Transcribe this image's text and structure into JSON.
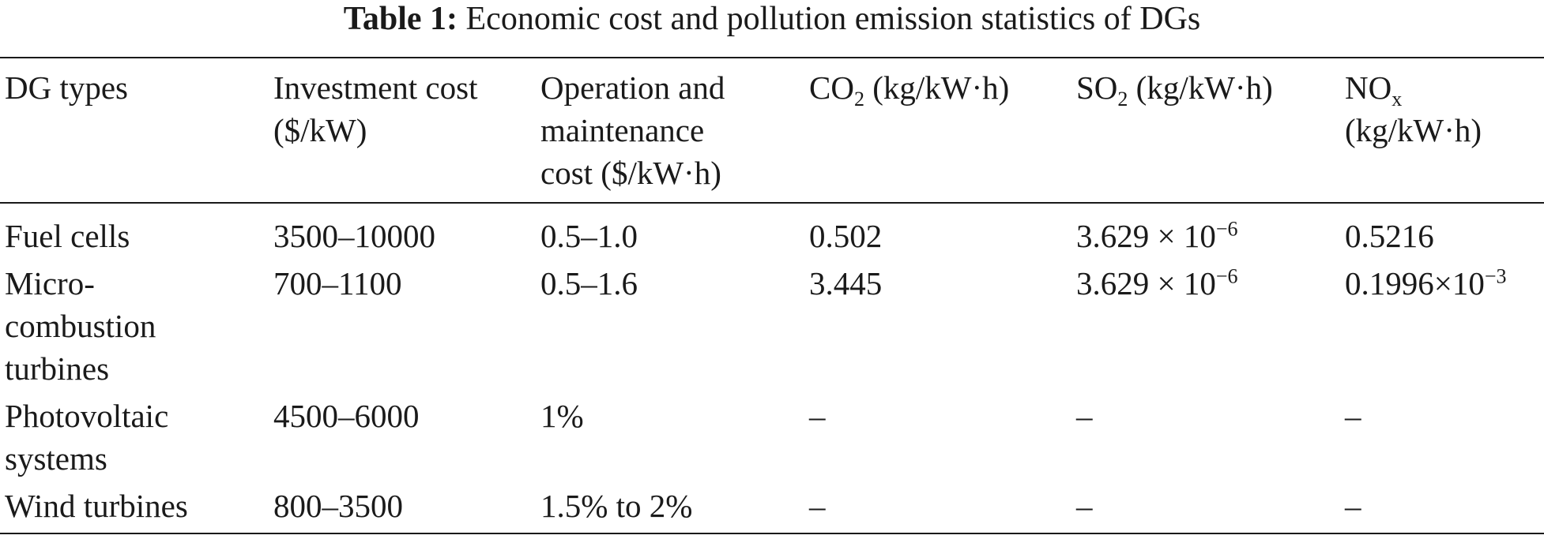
{
  "caption": {
    "label": "Table 1:",
    "text": "Economic cost and pollution emission statistics of DGs"
  },
  "headers": {
    "dg_types": "DG types",
    "investment": [
      "Investment cost",
      "($/kW)"
    ],
    "operation": [
      "Operation and",
      "maintenance",
      "cost ($/kW·h)"
    ],
    "co2": {
      "pre": "CO",
      "sub": "2",
      "post": " (kg/kW·h)"
    },
    "so2": {
      "pre": "SO",
      "sub": "2",
      "post": " (kg/kW·h)"
    },
    "nox": {
      "pre": "NO",
      "sub": "x",
      "post": "(kg/kW·h)"
    }
  },
  "rows": [
    {
      "type": [
        "Fuel cells"
      ],
      "investment": "3500–10000",
      "operation": "0.5–1.0",
      "co2": "0.502",
      "so2": {
        "base": "3.629 × 10",
        "exp": "−6"
      },
      "nox": {
        "base": "0.5216",
        "exp": ""
      }
    },
    {
      "type": [
        "Micro-",
        "combustion",
        "turbines"
      ],
      "investment": "700–1100",
      "operation": "0.5–1.6",
      "co2": "3.445",
      "so2": {
        "base": "3.629 × 10",
        "exp": "−6"
      },
      "nox": {
        "base": "0.1996×10",
        "exp": "−3"
      }
    },
    {
      "type": [
        "Photovoltaic",
        "systems"
      ],
      "investment": "4500–6000",
      "operation": "1%",
      "co2": "–",
      "so2": {
        "base": "–",
        "exp": ""
      },
      "nox": {
        "base": "–",
        "exp": ""
      }
    },
    {
      "type": [
        "Wind turbines"
      ],
      "investment": "800–3500",
      "operation": "1.5% to 2%",
      "co2": "–",
      "so2": {
        "base": "–",
        "exp": ""
      },
      "nox": {
        "base": "–",
        "exp": ""
      }
    }
  ]
}
